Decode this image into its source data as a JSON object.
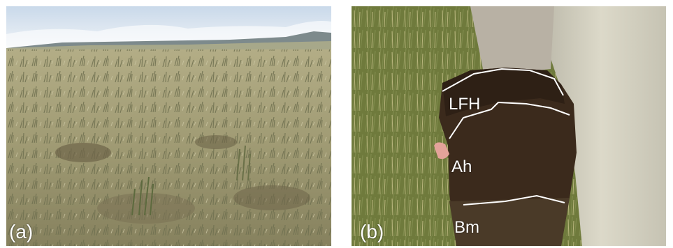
{
  "panels": [
    {
      "label": "(a)",
      "icon": "grassland-landscape-photo"
    },
    {
      "label": "(b)",
      "icon": "soil-profile-photo",
      "horizons": [
        "LFH",
        "Ah",
        "Bm"
      ]
    }
  ],
  "colors": {
    "sky": "#dfe8f2",
    "grass": "#9c9a74",
    "soil": "#3a2a1c",
    "horizon_line": "#ffffff"
  }
}
